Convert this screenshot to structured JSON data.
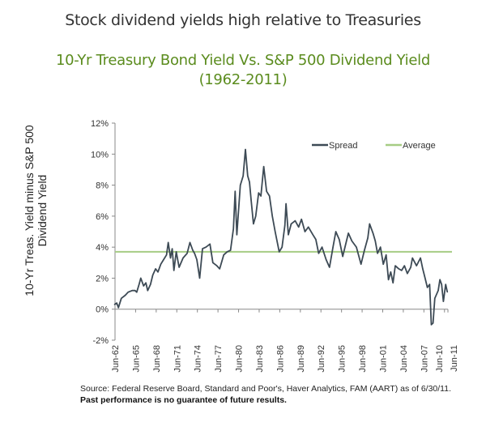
{
  "heading": "Stock dividend yields high relative to Treasuries",
  "chart_data": {
    "type": "line",
    "title": [
      "10-Yr Treasury Bond Yield Vs. S&P 500 Dividend Yield",
      "(1962-2011)"
    ],
    "ylabel": "10-Yr Treas. Yield minus S&P 500 Dividend Yield",
    "xlabel": "",
    "ylim": [
      -2,
      12
    ],
    "yticks": [
      "-2%",
      "0%",
      "2%",
      "4%",
      "6%",
      "8%",
      "10%",
      "12%"
    ],
    "yticks_values": [
      -2,
      0,
      2,
      4,
      6,
      8,
      10,
      12
    ],
    "xticks": [
      "Jun-62",
      "Jun-65",
      "Jun-68",
      "Jun-71",
      "Jun-74",
      "Jun-77",
      "Jun-80",
      "Jun-83",
      "Jun-86",
      "Jun-89",
      "Jun-92",
      "Jun-95",
      "Jun-98",
      "Jun-01",
      "Jun-04",
      "Jun-07",
      "Jun-10",
      "Jun-11"
    ],
    "grid": false,
    "legend_position": "top-right",
    "series": [
      {
        "name": "Spread",
        "color": "#3d4a55",
        "points": [
          [
            "1962-06",
            0.3
          ],
          [
            "1962-10",
            0.4
          ],
          [
            "1963-01",
            0.1
          ],
          [
            "1963-06",
            0.7
          ],
          [
            "1964-01",
            0.9
          ],
          [
            "1964-06",
            1.1
          ],
          [
            "1965-01",
            1.2
          ],
          [
            "1965-06",
            1.2
          ],
          [
            "1965-09",
            1.1
          ],
          [
            "1966-01",
            1.6
          ],
          [
            "1966-04",
            2.0
          ],
          [
            "1966-09",
            1.5
          ],
          [
            "1967-01",
            1.7
          ],
          [
            "1967-04",
            1.2
          ],
          [
            "1967-09",
            1.6
          ],
          [
            "1968-01",
            2.2
          ],
          [
            "1968-06",
            2.6
          ],
          [
            "1968-10",
            2.4
          ],
          [
            "1969-03",
            2.9
          ],
          [
            "1969-08",
            3.2
          ],
          [
            "1970-01",
            3.5
          ],
          [
            "1970-04",
            4.3
          ],
          [
            "1970-08",
            3.3
          ],
          [
            "1970-11",
            3.9
          ],
          [
            "1971-02",
            2.5
          ],
          [
            "1971-06",
            3.7
          ],
          [
            "1971-11",
            2.7
          ],
          [
            "1972-06",
            3.3
          ],
          [
            "1973-01",
            3.6
          ],
          [
            "1973-06",
            4.3
          ],
          [
            "1973-11",
            3.8
          ],
          [
            "1974-02",
            3.6
          ],
          [
            "1974-06",
            3.2
          ],
          [
            "1974-11",
            2.0
          ],
          [
            "1975-04",
            3.9
          ],
          [
            "1975-10",
            4.0
          ],
          [
            "1976-05",
            4.2
          ],
          [
            "1976-10",
            3.0
          ],
          [
            "1977-05",
            2.8
          ],
          [
            "1977-10",
            2.6
          ],
          [
            "1978-05",
            3.5
          ],
          [
            "1978-11",
            3.7
          ],
          [
            "1979-05",
            3.8
          ],
          [
            "1979-10",
            5.2
          ],
          [
            "1980-01",
            7.6
          ],
          [
            "1980-04",
            4.8
          ],
          [
            "1980-10",
            8.0
          ],
          [
            "1981-03",
            8.6
          ],
          [
            "1981-07",
            10.3
          ],
          [
            "1981-11",
            8.6
          ],
          [
            "1982-02",
            8.2
          ],
          [
            "1982-05",
            7.0
          ],
          [
            "1982-09",
            5.5
          ],
          [
            "1983-01",
            6.0
          ],
          [
            "1983-06",
            7.5
          ],
          [
            "1983-10",
            7.3
          ],
          [
            "1984-03",
            9.2
          ],
          [
            "1984-08",
            7.6
          ],
          [
            "1985-01",
            7.3
          ],
          [
            "1985-06",
            6.0
          ],
          [
            "1985-11",
            5.0
          ],
          [
            "1986-06",
            3.7
          ],
          [
            "1986-11",
            4.0
          ],
          [
            "1987-04",
            5.4
          ],
          [
            "1987-06",
            6.8
          ],
          [
            "1987-10",
            4.8
          ],
          [
            "1988-03",
            5.5
          ],
          [
            "1988-10",
            5.7
          ],
          [
            "1989-04",
            5.3
          ],
          [
            "1989-09",
            5.8
          ],
          [
            "1990-03",
            5.0
          ],
          [
            "1990-09",
            5.3
          ],
          [
            "1991-05",
            4.8
          ],
          [
            "1991-10",
            4.5
          ],
          [
            "1992-03",
            3.6
          ],
          [
            "1992-09",
            4.0
          ],
          [
            "1993-04",
            3.2
          ],
          [
            "1993-10",
            2.7
          ],
          [
            "1994-04",
            4.0
          ],
          [
            "1994-09",
            5.0
          ],
          [
            "1995-03",
            4.5
          ],
          [
            "1995-09",
            3.4
          ],
          [
            "1996-03",
            4.3
          ],
          [
            "1996-07",
            4.9
          ],
          [
            "1997-01",
            4.4
          ],
          [
            "1997-09",
            4.0
          ],
          [
            "1998-05",
            2.9
          ],
          [
            "1998-11",
            3.8
          ],
          [
            "1999-05",
            4.6
          ],
          [
            "1999-08",
            5.5
          ],
          [
            "2000-02",
            4.9
          ],
          [
            "2000-06",
            4.4
          ],
          [
            "2000-10",
            3.6
          ],
          [
            "2001-03",
            4.0
          ],
          [
            "2001-08",
            2.9
          ],
          [
            "2002-01",
            3.5
          ],
          [
            "2002-05",
            1.9
          ],
          [
            "2002-09",
            2.4
          ],
          [
            "2003-01",
            1.7
          ],
          [
            "2003-05",
            2.8
          ],
          [
            "2003-11",
            2.6
          ],
          [
            "2004-04",
            2.5
          ],
          [
            "2004-09",
            2.8
          ],
          [
            "2005-02",
            2.3
          ],
          [
            "2005-08",
            2.7
          ],
          [
            "2005-11",
            3.3
          ],
          [
            "2006-06",
            2.8
          ],
          [
            "2007-01",
            3.3
          ],
          [
            "2007-05",
            2.6
          ],
          [
            "2007-09",
            2.0
          ],
          [
            "2008-01",
            1.4
          ],
          [
            "2008-05",
            1.6
          ],
          [
            "2008-08",
            -1.0
          ],
          [
            "2008-11",
            -0.9
          ],
          [
            "2009-02",
            0.7
          ],
          [
            "2009-08",
            1.2
          ],
          [
            "2009-11",
            1.9
          ],
          [
            "2010-02",
            1.6
          ],
          [
            "2010-05",
            0.5
          ],
          [
            "2010-09",
            1.6
          ],
          [
            "2010-12",
            1.1
          ]
        ]
      },
      {
        "name": "Average",
        "color": "#a6cc84",
        "value": 3.7
      }
    ]
  },
  "footer": {
    "source": "Source: Federal Reserve Board, Standard and Poor's, Haver Analytics, FAM (AART) as of 6/30/11.",
    "disclaimer": "Past performance is no guarantee of future results."
  }
}
